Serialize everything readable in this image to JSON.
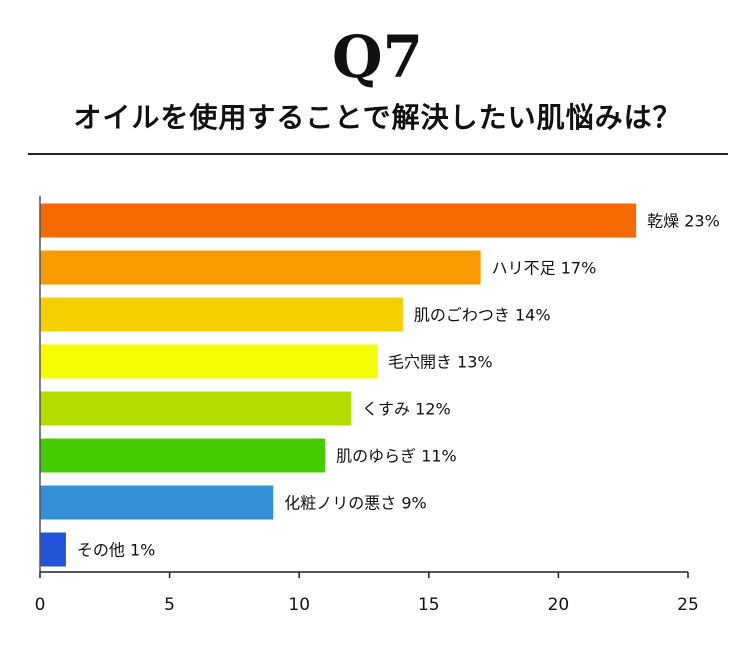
{
  "header": {
    "q_number": "Q7",
    "question": "オイルを使用することで解決したい肌悩みは？"
  },
  "chart_data": {
    "type": "bar",
    "orientation": "horizontal",
    "categories": [
      "乾燥",
      "ハリ不足",
      "肌のごわつき",
      "毛穴開き",
      "くすみ",
      "肌のゆらぎ",
      "化粧ノリの悪さ",
      "その他"
    ],
    "values": [
      23,
      17,
      14,
      13,
      12,
      11,
      9,
      1
    ],
    "data_labels": [
      "乾燥 23%",
      "ハリ不足  17%",
      "肌のごわつき  14%",
      "毛穴開き  13%",
      "くすみ 12%",
      "肌のゆらぎ  11%",
      "化粧ノリの悪さ  9%",
      "その他 1%"
    ],
    "colors": [
      "#f56a00",
      "#f89b00",
      "#f5cf00",
      "#f5fb00",
      "#b3de00",
      "#45cc00",
      "#358fd6",
      "#2253d9"
    ],
    "xlim": [
      0,
      25
    ],
    "x_ticks": [
      "0",
      "5",
      "10",
      "15",
      "20",
      "25"
    ],
    "grid": false,
    "legend": "none"
  }
}
